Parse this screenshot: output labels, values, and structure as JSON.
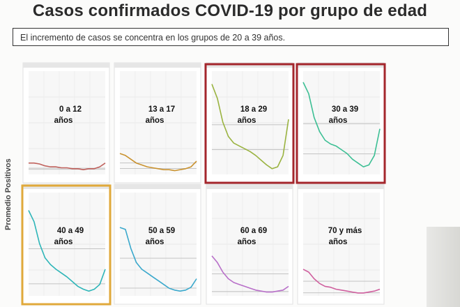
{
  "header": {
    "title": "Casos confirmados COVID-19 por grupo de edad",
    "subtitle": "El incremento de casos se concentra en los grupos de 20 a 39 años."
  },
  "chart_data": {
    "type": "line",
    "ylabel": "Promedio Positivos",
    "panels": [
      {
        "label_line1": "0 a 12",
        "label_line2": "años",
        "color": "#c0615c",
        "highlight": "",
        "curve": [
          0.12,
          0.12,
          0.11,
          0.09,
          0.08,
          0.08,
          0.07,
          0.07,
          0.06,
          0.06,
          0.05,
          0.06,
          0.06,
          0.08,
          0.12
        ]
      },
      {
        "label_line1": "13 a 17",
        "label_line2": "años",
        "color": "#c9922f",
        "highlight": "",
        "curve": [
          0.22,
          0.2,
          0.16,
          0.12,
          0.1,
          0.08,
          0.07,
          0.06,
          0.05,
          0.05,
          0.04,
          0.05,
          0.06,
          0.08,
          0.14
        ]
      },
      {
        "label_line1": "18 a 29",
        "label_line2": "años",
        "color": "#9ab340",
        "highlight": "#a4262c",
        "curve": [
          0.95,
          0.8,
          0.55,
          0.4,
          0.33,
          0.3,
          0.27,
          0.24,
          0.2,
          0.15,
          0.1,
          0.06,
          0.08,
          0.2,
          0.58
        ]
      },
      {
        "label_line1": "30 a 39",
        "label_line2": "años",
        "color": "#3cbf94",
        "highlight": "#a4262c",
        "curve": [
          0.97,
          0.85,
          0.6,
          0.45,
          0.36,
          0.32,
          0.3,
          0.26,
          0.22,
          0.16,
          0.12,
          0.08,
          0.1,
          0.2,
          0.48
        ]
      },
      {
        "label_line1": "40 a 49",
        "label_line2": "años",
        "color": "#2db5b8",
        "highlight": "#e0a93b",
        "curve": [
          0.9,
          0.78,
          0.55,
          0.4,
          0.33,
          0.28,
          0.24,
          0.2,
          0.15,
          0.1,
          0.07,
          0.05,
          0.07,
          0.12,
          0.28
        ]
      },
      {
        "label_line1": "50 a 59",
        "label_line2": "años",
        "color": "#3aa8cc",
        "highlight": "",
        "curve": [
          0.72,
          0.7,
          0.5,
          0.35,
          0.28,
          0.24,
          0.2,
          0.16,
          0.12,
          0.08,
          0.06,
          0.05,
          0.06,
          0.09,
          0.18
        ]
      },
      {
        "label_line1": "60 a 69",
        "label_line2": "años",
        "color": "#b86fc9",
        "highlight": "",
        "curve": [
          0.42,
          0.35,
          0.25,
          0.18,
          0.14,
          0.12,
          0.1,
          0.08,
          0.06,
          0.05,
          0.04,
          0.04,
          0.05,
          0.06,
          0.1
        ]
      },
      {
        "label_line1": "70 y más",
        "label_line2": "años",
        "color": "#cf5f9e",
        "highlight": "",
        "curve": [
          0.28,
          0.25,
          0.18,
          0.13,
          0.1,
          0.09,
          0.07,
          0.06,
          0.05,
          0.04,
          0.03,
          0.03,
          0.04,
          0.05,
          0.07
        ]
      }
    ]
  }
}
